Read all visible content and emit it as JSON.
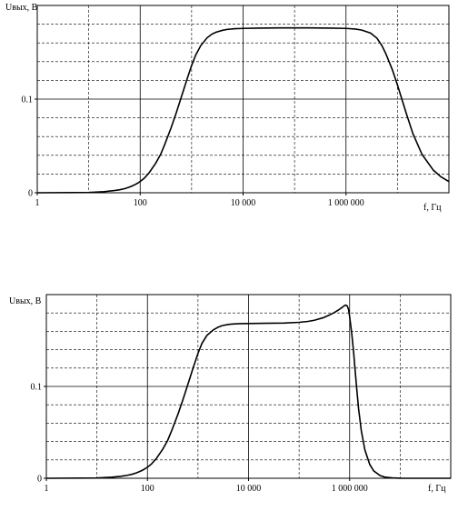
{
  "chart_data": [
    {
      "type": "line",
      "title": "",
      "ylabel": "Uвых, В",
      "xlabel": "f, Гц",
      "x_scale": "log",
      "xlim": [
        1,
        100000000
      ],
      "ylim": [
        0,
        0.2
      ],
      "x_ticks": [
        {
          "value": 1,
          "label": "1"
        },
        {
          "value": 100,
          "label": "100"
        },
        {
          "value": 10000,
          "label": "10 000"
        },
        {
          "value": 1000000,
          "label": "1 000 000"
        }
      ],
      "y_ticks": [
        {
          "value": 0,
          "label": "0"
        },
        {
          "value": 0.1,
          "label": "0.1"
        }
      ],
      "grid": true,
      "series": [
        {
          "x": [
            1,
            10,
            20,
            30,
            40,
            50,
            60,
            70,
            80,
            90,
            100,
            120,
            150,
            200,
            250,
            300,
            400,
            500,
            600,
            700,
            800,
            1000,
            1200,
            1500,
            2000,
            2500,
            3000,
            4000,
            5000,
            7000,
            10000,
            20000,
            50000,
            100000,
            200000,
            500000,
            1000000,
            1500000,
            2000000,
            3000000,
            4000000,
            5000000,
            6000000,
            8000000,
            10000000,
            15000000,
            20000000,
            30000000,
            50000000,
            70000000,
            100000000
          ],
          "y": [
            0,
            0.0003,
            0.0012,
            0.0022,
            0.0032,
            0.0044,
            0.0058,
            0.0073,
            0.0088,
            0.0104,
            0.012,
            0.0155,
            0.0215,
            0.0315,
            0.041,
            0.0515,
            0.0695,
            0.085,
            0.0985,
            0.11,
            0.12,
            0.136,
            0.147,
            0.157,
            0.1655,
            0.1695,
            0.1715,
            0.1735,
            0.1745,
            0.1752,
            0.1755,
            0.1758,
            0.176,
            0.176,
            0.176,
            0.1758,
            0.1755,
            0.1748,
            0.1738,
            0.1705,
            0.165,
            0.157,
            0.148,
            0.131,
            0.115,
            0.084,
            0.063,
            0.041,
            0.024,
            0.017,
            0.012
          ]
        }
      ]
    },
    {
      "type": "line",
      "title": "",
      "ylabel": "Uвых, В",
      "xlabel": "f, Гц",
      "x_scale": "log",
      "xlim": [
        1,
        100000000
      ],
      "ylim": [
        0,
        0.2
      ],
      "x_ticks": [
        {
          "value": 1,
          "label": "1"
        },
        {
          "value": 100,
          "label": "100"
        },
        {
          "value": 10000,
          "label": "10 000"
        },
        {
          "value": 1000000,
          "label": "1 000 000"
        }
      ],
      "y_ticks": [
        {
          "value": 0,
          "label": "0"
        },
        {
          "value": 0.1,
          "label": "0.1"
        }
      ],
      "grid": true,
      "series": [
        {
          "x": [
            1,
            10,
            20,
            30,
            40,
            50,
            60,
            70,
            80,
            90,
            100,
            120,
            150,
            200,
            250,
            300,
            400,
            500,
            600,
            700,
            800,
            1000,
            1200,
            1500,
            2000,
            2500,
            3000,
            4000,
            5000,
            7000,
            10000,
            20000,
            50000,
            100000,
            150000,
            200000,
            300000,
            400000,
            500000,
            600000,
            700000,
            800000,
            850000,
            900000,
            950000,
            1000000,
            1100000,
            1200000,
            1300000,
            1400000,
            1500000,
            1700000,
            2000000,
            2500000,
            3000000,
            4000000,
            5000000,
            7000000,
            10000000,
            20000000,
            100000000
          ],
          "y": [
            0,
            0.0003,
            0.0012,
            0.0022,
            0.0032,
            0.0044,
            0.0058,
            0.0073,
            0.0088,
            0.0104,
            0.012,
            0.0155,
            0.0215,
            0.0315,
            0.041,
            0.0515,
            0.0695,
            0.085,
            0.0985,
            0.11,
            0.12,
            0.136,
            0.147,
            0.1555,
            0.1615,
            0.1645,
            0.1662,
            0.1675,
            0.168,
            0.1684,
            0.1685,
            0.1687,
            0.169,
            0.1698,
            0.1708,
            0.172,
            0.1748,
            0.1778,
            0.1805,
            0.1832,
            0.1858,
            0.1882,
            0.1885,
            0.1875,
            0.184,
            0.176,
            0.158,
            0.137,
            0.114,
            0.094,
            0.076,
            0.052,
            0.031,
            0.015,
            0.008,
            0.003,
            0.0012,
            0.0004,
            0.0001,
            0,
            0
          ]
        }
      ]
    }
  ]
}
